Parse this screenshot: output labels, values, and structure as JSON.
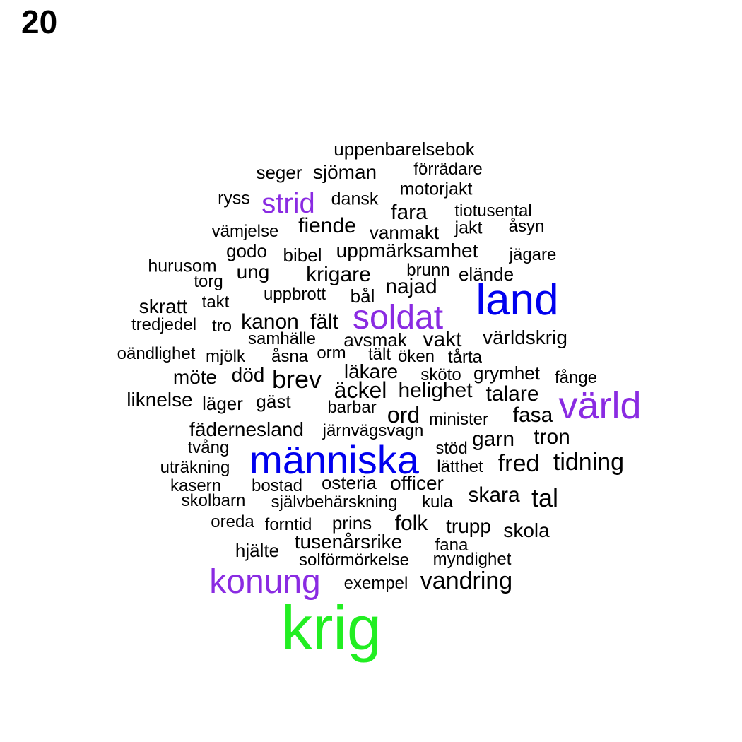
{
  "panel_number": "20",
  "colors": {
    "default": "#000000",
    "purple": "#8a2be2",
    "blue": "#0000ee",
    "green": "#22ee22"
  },
  "words": [
    {
      "text": "uppenbarelsebok",
      "color": "default"
    },
    {
      "text": "seger",
      "color": "default"
    },
    {
      "text": "sjöman",
      "color": "default"
    },
    {
      "text": "förrädare",
      "color": "default"
    },
    {
      "text": "motorjakt",
      "color": "default"
    },
    {
      "text": "ryss",
      "color": "default"
    },
    {
      "text": "strid",
      "color": "purple"
    },
    {
      "text": "dansk",
      "color": "default"
    },
    {
      "text": "fara",
      "color": "default"
    },
    {
      "text": "tiotusental",
      "color": "default"
    },
    {
      "text": "vämjelse",
      "color": "default"
    },
    {
      "text": "fiende",
      "color": "default"
    },
    {
      "text": "vanmakt",
      "color": "default"
    },
    {
      "text": "jakt",
      "color": "default"
    },
    {
      "text": "åsyn",
      "color": "default"
    },
    {
      "text": "godo",
      "color": "default"
    },
    {
      "text": "bibel",
      "color": "default"
    },
    {
      "text": "uppmärksamhet",
      "color": "default"
    },
    {
      "text": "jägare",
      "color": "default"
    },
    {
      "text": "hurusom",
      "color": "default"
    },
    {
      "text": "ung",
      "color": "default"
    },
    {
      "text": "krigare",
      "color": "default"
    },
    {
      "text": "brunn",
      "color": "default"
    },
    {
      "text": "elände",
      "color": "default"
    },
    {
      "text": "torg",
      "color": "default"
    },
    {
      "text": "najad",
      "color": "default"
    },
    {
      "text": "uppbrott",
      "color": "default"
    },
    {
      "text": "bål",
      "color": "default"
    },
    {
      "text": "land",
      "color": "blue"
    },
    {
      "text": "skratt",
      "color": "default"
    },
    {
      "text": "takt",
      "color": "default"
    },
    {
      "text": "soldat",
      "color": "purple"
    },
    {
      "text": "tredjedel",
      "color": "default"
    },
    {
      "text": "tro",
      "color": "default"
    },
    {
      "text": "kanon",
      "color": "default"
    },
    {
      "text": "fält",
      "color": "default"
    },
    {
      "text": "samhälle",
      "color": "default"
    },
    {
      "text": "avsmak",
      "color": "default"
    },
    {
      "text": "vakt",
      "color": "default"
    },
    {
      "text": "världskrig",
      "color": "default"
    },
    {
      "text": "oändlighet",
      "color": "default"
    },
    {
      "text": "mjölk",
      "color": "default"
    },
    {
      "text": "åsna",
      "color": "default"
    },
    {
      "text": "orm",
      "color": "default"
    },
    {
      "text": "tält",
      "color": "default"
    },
    {
      "text": "öken",
      "color": "default"
    },
    {
      "text": "tårta",
      "color": "default"
    },
    {
      "text": "möte",
      "color": "default"
    },
    {
      "text": "död",
      "color": "default"
    },
    {
      "text": "brev",
      "color": "default"
    },
    {
      "text": "läkare",
      "color": "default"
    },
    {
      "text": "sköto",
      "color": "default"
    },
    {
      "text": "grymhet",
      "color": "default"
    },
    {
      "text": "fånge",
      "color": "default"
    },
    {
      "text": "äckel",
      "color": "default"
    },
    {
      "text": "helighet",
      "color": "default"
    },
    {
      "text": "talare",
      "color": "default"
    },
    {
      "text": "liknelse",
      "color": "default"
    },
    {
      "text": "läger",
      "color": "default"
    },
    {
      "text": "gäst",
      "color": "default"
    },
    {
      "text": "barbar",
      "color": "default"
    },
    {
      "text": "värld",
      "color": "purple"
    },
    {
      "text": "ord",
      "color": "default"
    },
    {
      "text": "minister",
      "color": "default"
    },
    {
      "text": "fasa",
      "color": "default"
    },
    {
      "text": "fädernesland",
      "color": "default"
    },
    {
      "text": "järnvägsvagn",
      "color": "default"
    },
    {
      "text": "tron",
      "color": "default"
    },
    {
      "text": "tvång",
      "color": "default"
    },
    {
      "text": "stöd",
      "color": "default"
    },
    {
      "text": "garn",
      "color": "default"
    },
    {
      "text": "människa",
      "color": "blue"
    },
    {
      "text": "uträkning",
      "color": "default"
    },
    {
      "text": "lätthet",
      "color": "default"
    },
    {
      "text": "fred",
      "color": "default"
    },
    {
      "text": "tidning",
      "color": "default"
    },
    {
      "text": "kasern",
      "color": "default"
    },
    {
      "text": "bostad",
      "color": "default"
    },
    {
      "text": "osteria",
      "color": "default"
    },
    {
      "text": "officer",
      "color": "default"
    },
    {
      "text": "skara",
      "color": "default"
    },
    {
      "text": "skolbarn",
      "color": "default"
    },
    {
      "text": "självbehärskning",
      "color": "default"
    },
    {
      "text": "kula",
      "color": "default"
    },
    {
      "text": "tal",
      "color": "default"
    },
    {
      "text": "oreda",
      "color": "default"
    },
    {
      "text": "forntid",
      "color": "default"
    },
    {
      "text": "prins",
      "color": "default"
    },
    {
      "text": "folk",
      "color": "default"
    },
    {
      "text": "trupp",
      "color": "default"
    },
    {
      "text": "skola",
      "color": "default"
    },
    {
      "text": "hjälte",
      "color": "default"
    },
    {
      "text": "tusenårsrike",
      "color": "default"
    },
    {
      "text": "fana",
      "color": "default"
    },
    {
      "text": "solförmörkelse",
      "color": "default"
    },
    {
      "text": "myndighet",
      "color": "default"
    },
    {
      "text": "konung",
      "color": "purple"
    },
    {
      "text": "exempel",
      "color": "default"
    },
    {
      "text": "vandring",
      "color": "default"
    },
    {
      "text": "krig",
      "color": "green"
    }
  ]
}
